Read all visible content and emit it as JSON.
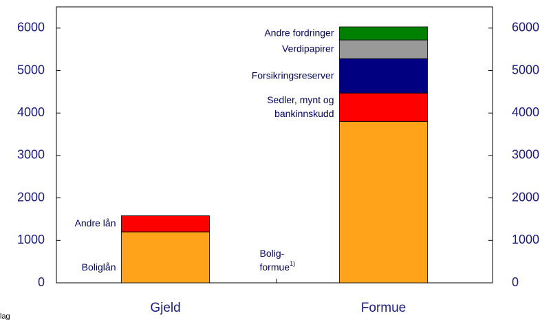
{
  "chart_data": {
    "type": "stacked_bar",
    "categories": [
      "Gjeld",
      "Formue"
    ],
    "series": [
      {
        "name": "Boliglån",
        "color": "#ffa31a",
        "values": [
          1200,
          null
        ]
      },
      {
        "name": "Andre lån",
        "color": "#ff0000",
        "values": [
          380,
          null
        ]
      },
      {
        "name_lines": [
          "Bolig-",
          "formue"
        ],
        "note_marker": "1)",
        "color": "#ffa31a",
        "values": [
          null,
          3800
        ]
      },
      {
        "name_lines": [
          "Sedler, mynt og",
          "bankinnskudd"
        ],
        "color": "#ff0000",
        "values": [
          null,
          670
        ]
      },
      {
        "name": "Forsikringsreserver",
        "color": "#000080",
        "values": [
          null,
          810
        ]
      },
      {
        "name": "Verdipapirer",
        "color": "#999999",
        "values": [
          null,
          440
        ]
      },
      {
        "name": "Andre fordringer",
        "color": "#008000",
        "values": [
          null,
          310
        ]
      }
    ],
    "ylim": [
      0,
      6500
    ],
    "yticks": [
      0,
      1000,
      2000,
      3000,
      4000,
      5000,
      6000
    ],
    "y2lim": [
      0,
      6500
    ],
    "y2ticks": [
      0,
      1000,
      2000,
      3000,
      4000,
      5000,
      6000
    ],
    "source_fragment": "lag"
  }
}
